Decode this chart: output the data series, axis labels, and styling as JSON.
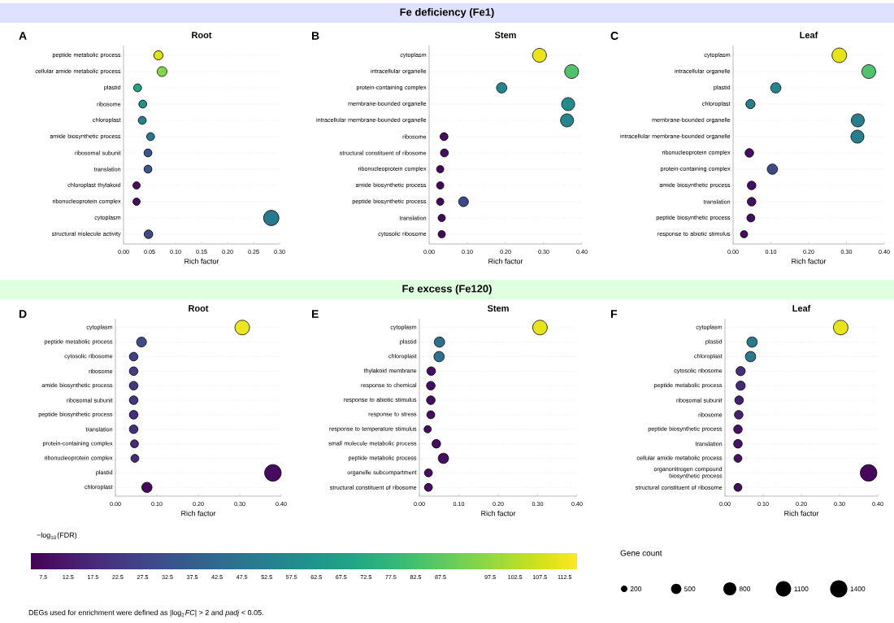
{
  "chart_data": [
    {
      "type": "bubble",
      "title": "Root",
      "annotations": [
        "A"
      ],
      "orientation": "horizontal",
      "xlabel": "Rich factor",
      "xlim": [
        0,
        0.3
      ],
      "xticks": [
        {
          "value": 0,
          "label": "0.00"
        },
        {
          "value": 0.05,
          "label": "0.05"
        },
        {
          "value": 0.1,
          "label": "0.10"
        },
        {
          "value": 0.15,
          "label": "0.15"
        },
        {
          "value": 0.2,
          "label": "0.20"
        },
        {
          "value": 0.25,
          "label": "0.25"
        },
        {
          "value": 0.3,
          "label": "0.30"
        }
      ],
      "grid": "y",
      "categories": [
        "peptide metabolic process",
        "cellular amide metabolic process",
        "plastid",
        "ribosome",
        "chloroplast",
        "amide biosynthetic process",
        "ribosomal subunit",
        "translation",
        "chloroplast thylakoid",
        "ribonucleoprotein complex",
        "cytoplasm",
        "structural molecule activity"
      ],
      "series": [
        {
          "values": [
            0.067,
            0.074,
            0.027,
            0.037,
            0.036,
            0.052,
            0.047,
            0.047,
            0.025,
            0.025,
            0.284,
            0.048
          ],
          "sizes": [
            0.36,
            0.41,
            0.27,
            0.27,
            0.27,
            0.27,
            0.27,
            0.27,
            0.23,
            0.23,
            1,
            0.32
          ],
          "colors": [
            "#dde318",
            "#84d44b",
            "#20a486",
            "#21918c",
            "#25858e",
            "#29798e",
            "#38588c",
            "#38588c",
            "#470d60",
            "#470d60",
            "#29798e",
            "#3e4989"
          ]
        }
      ]
    },
    {
      "type": "bubble",
      "title": "Stem",
      "annotations": [
        "B",
        "Fe deficiency (Fe1)"
      ],
      "orientation": "horizontal",
      "xlabel": "Rich factor",
      "xlim": [
        0,
        0.4
      ],
      "xticks": [
        {
          "value": 0,
          "label": "0.00"
        },
        {
          "value": 0.1,
          "label": "0.10"
        },
        {
          "value": 0.2,
          "label": "0.20"
        },
        {
          "value": 0.3,
          "label": "0.30"
        },
        {
          "value": 0.4,
          "label": "0.40"
        }
      ],
      "grid": "y",
      "categories": [
        "cytoplasm",
        "intracellular organelle",
        "protein-containing complex",
        "membrane-bounded organelle",
        "intracellular membrane-bounded organelle",
        "ribosome",
        "structural constituent of ribosome",
        "ribonucleoprotein complex",
        "amide biosynthetic process",
        "peptide biosynthetic process",
        "translation",
        "cytosolic ribosome"
      ],
      "series": [
        {
          "values": [
            0.289,
            0.373,
            0.19,
            0.364,
            0.361,
            0.039,
            0.04,
            0.029,
            0.029,
            0.029,
            0.033,
            0.033
          ],
          "sizes": [
            1,
            1,
            0.56,
            0.89,
            0.89,
            0.33,
            0.33,
            0.28,
            0.28,
            0.28,
            0.28,
            0.28
          ],
          "colors": [
            "#e8e419",
            "#4ec36b",
            "#25858e",
            "#228c8d",
            "#25858e",
            "#470d60",
            "#470d60",
            "#46085c",
            "#46085c",
            "#46085c",
            "#46085c",
            "#46085c"
          ]
        },
        {
          "values": [
            null,
            null,
            null,
            null,
            null,
            null,
            null,
            null,
            null,
            0.09,
            null,
            null
          ],
          "sizes": [
            null,
            null,
            null,
            null,
            null,
            null,
            null,
            null,
            null,
            0.5,
            null,
            null
          ],
          "color": "#3e4989"
        }
      ]
    },
    {
      "type": "bubble",
      "title": "Leaf",
      "annotations": [
        "C"
      ],
      "orientation": "horizontal",
      "xlabel": "Rich factor",
      "xlim": [
        0,
        0.4
      ],
      "xticks": [
        {
          "value": 0,
          "label": "0.00"
        },
        {
          "value": 0.1,
          "label": "0.10"
        },
        {
          "value": 0.2,
          "label": "0.20"
        },
        {
          "value": 0.3,
          "label": "0.30"
        },
        {
          "value": 0.4,
          "label": "0.40"
        }
      ],
      "grid": "y",
      "categories": [
        "cytoplasm",
        "intracellular organelle",
        "plastid",
        "chloroplast",
        "membrane-bounded organelle",
        "intracellular membrane-bounded organelle",
        "ribonucleoprotein complex",
        "protein-containing complex",
        "amide biosynthetic process",
        "translation",
        "peptide biosynthetic process",
        "response to abiotic stimulus"
      ],
      "series": [
        {
          "values": [
            0.281,
            0.359,
            0.113,
            0.046,
            0.33,
            0.329,
            0.043,
            0.104,
            0.049,
            0.049,
            0.047,
            0.029
          ],
          "sizes": [
            1,
            0.9,
            0.5,
            0.4,
            0.8,
            0.8,
            0.35,
            0.5,
            0.35,
            0.35,
            0.3,
            0.25
          ],
          "colors": [
            "#e8e419",
            "#4ec36b",
            "#25858e",
            "#277f8e",
            "#277f8e",
            "#277f8e",
            "#470d60",
            "#3e4989",
            "#470d60",
            "#470d60",
            "#470d60",
            "#46085c"
          ]
        }
      ]
    },
    {
      "type": "bubble",
      "title": "Root",
      "annotations": [
        "D",
        "DEGs used for enrichment were defined as |log$_{2}$*FC*| > 2 and *padj* < 0.05."
      ],
      "orientation": "horizontal",
      "xlabel": "Rich factor",
      "xlim": [
        0,
        0.4
      ],
      "xticks": [
        {
          "value": 0,
          "label": "0.00"
        },
        {
          "value": 0.1,
          "label": "0.10"
        },
        {
          "value": 0.2,
          "label": "0.20"
        },
        {
          "value": 0.3,
          "label": "0.30"
        },
        {
          "value": 0.4,
          "label": "0.40"
        }
      ],
      "grid": "y",
      "clabel": "−log$_{10}$(FDR)",
      "clim": [
        5,
        115
      ],
      "cticks": [
        7.5,
        12.5,
        17.5,
        22.5,
        27.5,
        32.5,
        37.5,
        42.5,
        47.5,
        52.5,
        57.5,
        62.5,
        67.5,
        72.5,
        77.5,
        82.5,
        87.5,
        97.5,
        102.5,
        107.5,
        112.5
      ],
      "categories": [
        "cytoplasm",
        "peptide metabolic process",
        "cytosolic ribosome",
        "ribosome",
        "amide biosynthetic process",
        "ribosomal subunit",
        "peptide biosynthetic process",
        "translation",
        "protein-containing complex",
        "ribonucleoprotein complex",
        "plastid",
        "chloroplast"
      ],
      "series": [
        {
          "values": [
            0.306,
            0.063,
            0.044,
            0.044,
            0.044,
            0.044,
            0.044,
            0.044,
            0.046,
            0.047,
            0.38,
            0.076
          ],
          "sizes": [
            0.77,
            0.35,
            0.27,
            0.27,
            0.27,
            0.27,
            0.27,
            0.27,
            0.23,
            0.23,
            1,
            0.38
          ],
          "cvalues": [
            112,
            30,
            25,
            25,
            22,
            22,
            20,
            20,
            18,
            18,
            8,
            8
          ]
        }
      ]
    },
    {
      "type": "bubble",
      "title": "Stem",
      "annotations": [
        "E",
        "Fe excess (Fe120)"
      ],
      "orientation": "horizontal",
      "xlabel": "Rich factor",
      "xlim": [
        0,
        0.4
      ],
      "xticks": [
        {
          "value": 0,
          "label": "0.00"
        },
        {
          "value": 0.1,
          "label": "0.10"
        },
        {
          "value": 0.2,
          "label": "0.20"
        },
        {
          "value": 0.3,
          "label": "0.30"
        },
        {
          "value": 0.4,
          "label": "0.40"
        }
      ],
      "grid": "y",
      "categories": [
        "cytoplasm",
        "plastid",
        "chloroplast",
        "thylakoid membrane",
        "response to chemical",
        "response to abiotic stimulus",
        "response to stress",
        "response to temperature stimulus",
        "small molecule metabolic process",
        "peptide metabolic process",
        "organelle subcompartment",
        "structural constituent of ribosome"
      ],
      "series": [
        {
          "values": [
            0.306,
            0.051,
            0.05,
            0.03,
            0.029,
            0.029,
            0.029,
            0.021,
            0.043,
            0.061,
            0.023,
            0.023
          ],
          "sizes": [
            1,
            0.5,
            0.5,
            0.35,
            0.35,
            0.35,
            0.3,
            0.25,
            0.35,
            0.5,
            0.3,
            0.3
          ],
          "colors": [
            "#e8e419",
            "#2c728e",
            "#2c728e",
            "#470d60",
            "#470d60",
            "#470d60",
            "#470d60",
            "#470d60",
            "#470d60",
            "#470d60",
            "#470d60",
            "#470d60"
          ]
        }
      ]
    },
    {
      "type": "bubble",
      "title": "Leaf",
      "annotations": [
        "F"
      ],
      "orientation": "horizontal",
      "xlabel": "Rich factor",
      "xlim": [
        0,
        0.4
      ],
      "xticks": [
        {
          "value": 0,
          "label": "0.00"
        },
        {
          "value": 0.1,
          "label": "0.10"
        },
        {
          "value": 0.2,
          "label": "0.20"
        },
        {
          "value": 0.3,
          "label": "0.30"
        },
        {
          "value": 0.4,
          "label": "0.40"
        }
      ],
      "grid": "y",
      "legend_title": "Gene count",
      "size_legend": [
        200,
        500,
        800,
        1100,
        1400
      ],
      "categories": [
        "cytoplasm",
        "plastid",
        "chloroplast",
        "cytosolic ribosome",
        "peptide metabolic process",
        "ribosomal subunit",
        "ribosome",
        "peptide biosynthetic process",
        "translation",
        "cellular amide metabolic process",
        "organonitrogen compound biosynthetic process",
        "structural constituent of ribosome"
      ],
      "series": [
        {
          "values": [
            0.303,
            0.071,
            0.067,
            0.041,
            0.041,
            0.037,
            0.036,
            0.034,
            0.034,
            0.034,
            0.376,
            0.034
          ],
          "sizes": [
            1000,
            500,
            500,
            400,
            400,
            350,
            350,
            350,
            350,
            300,
            1300,
            300
          ],
          "colors": [
            "#e8e419",
            "#29798e",
            "#29798e",
            "#472e7c",
            "#482878",
            "#482071",
            "#482071",
            "#471365",
            "#471365",
            "#471365",
            "#46085c",
            "#470d60"
          ]
        }
      ]
    }
  ]
}
